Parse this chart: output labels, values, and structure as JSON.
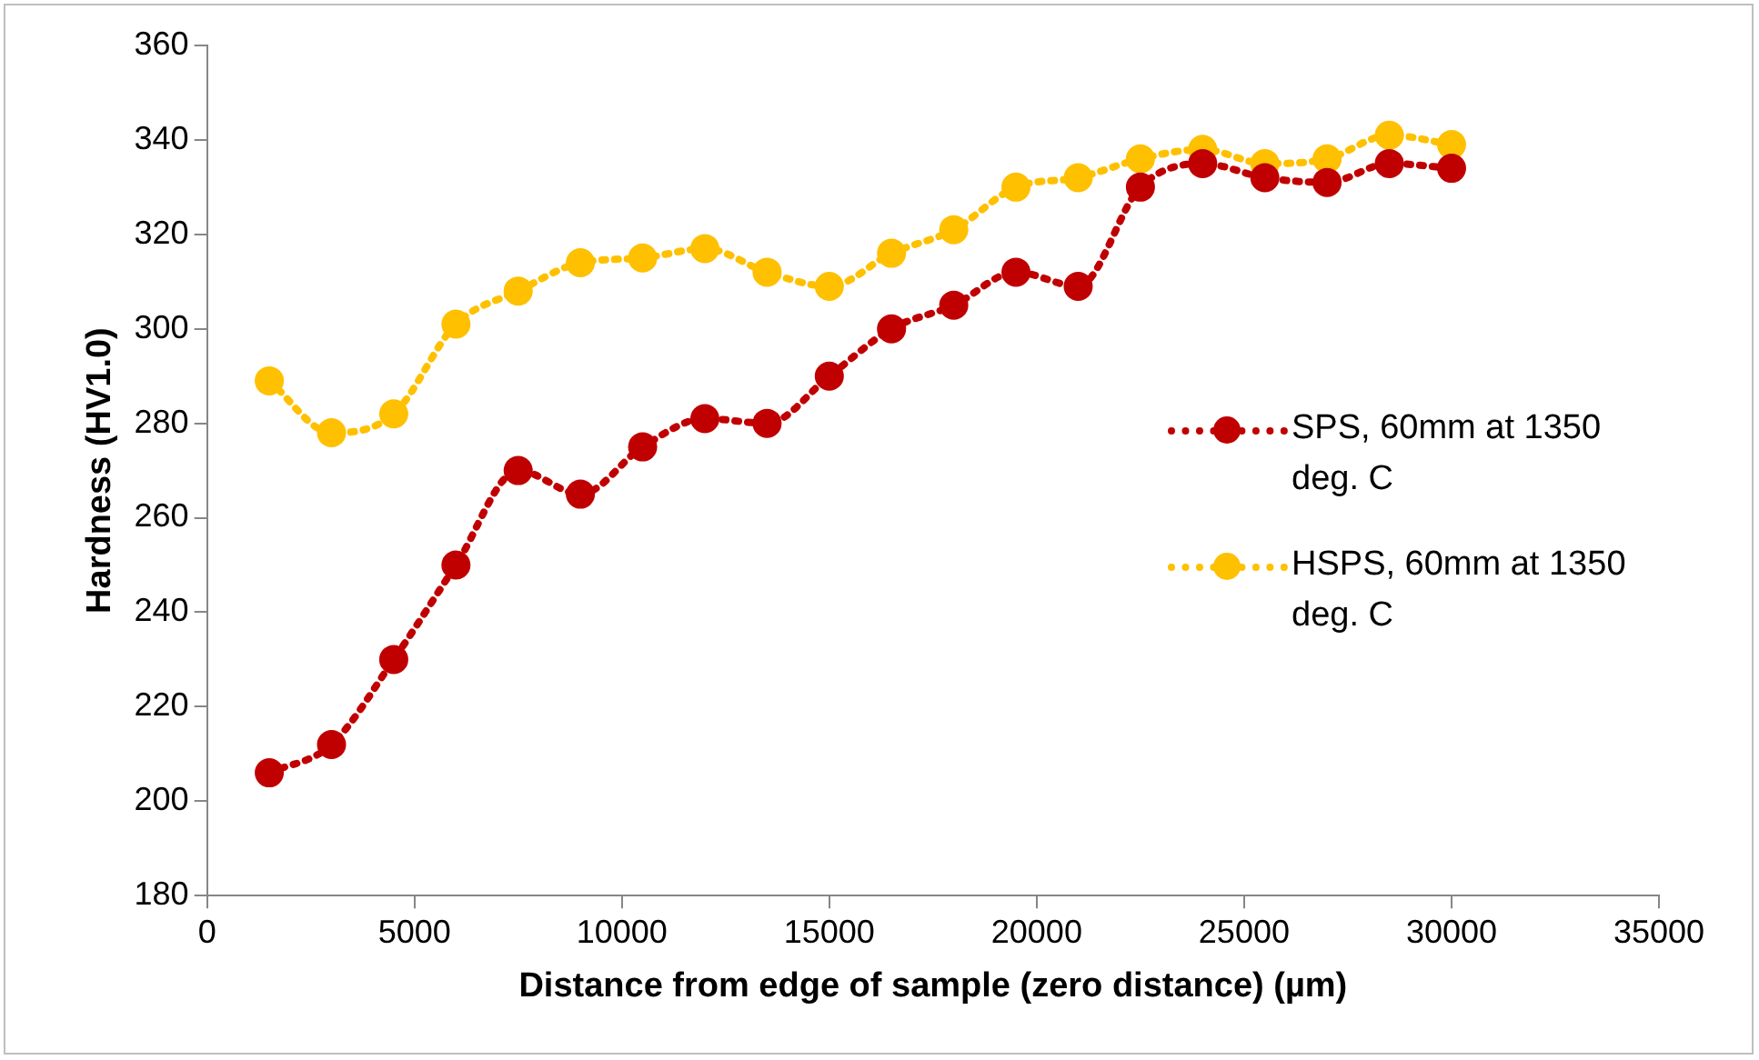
{
  "chart_data": {
    "type": "line",
    "xlabel": "Distance from edge of sample (zero distance) (µm)",
    "ylabel": "Hardness (HV1.0)",
    "x": [
      1500,
      3000,
      4500,
      6000,
      7500,
      9000,
      10500,
      12000,
      13500,
      15000,
      16500,
      18000,
      19500,
      21000,
      22500,
      24000,
      25500,
      27000,
      28500,
      30000
    ],
    "series": [
      {
        "name": "SPS, 60mm at 1350 deg. C",
        "color": "#c00000",
        "values": [
          206,
          212,
          230,
          250,
          270,
          265,
          275,
          281,
          280,
          290,
          300,
          305,
          312,
          309,
          330,
          335,
          332,
          331,
          335,
          334
        ]
      },
      {
        "name": "HSPS, 60mm at 1350 deg. C",
        "color": "#ffc000",
        "values": [
          289,
          278,
          282,
          301,
          308,
          314,
          315,
          317,
          312,
          309,
          316,
          321,
          330,
          332,
          336,
          338,
          335,
          336,
          341,
          339
        ]
      }
    ],
    "xlim": [
      0,
      35000
    ],
    "xticks": [
      0,
      5000,
      10000,
      15000,
      20000,
      25000,
      30000,
      35000
    ],
    "ylim": [
      180,
      360
    ],
    "yticks": [
      180,
      200,
      220,
      240,
      260,
      280,
      300,
      320,
      340,
      360
    ],
    "grid": false,
    "legend": "right",
    "marker": "circle",
    "line_style": "dotted"
  }
}
